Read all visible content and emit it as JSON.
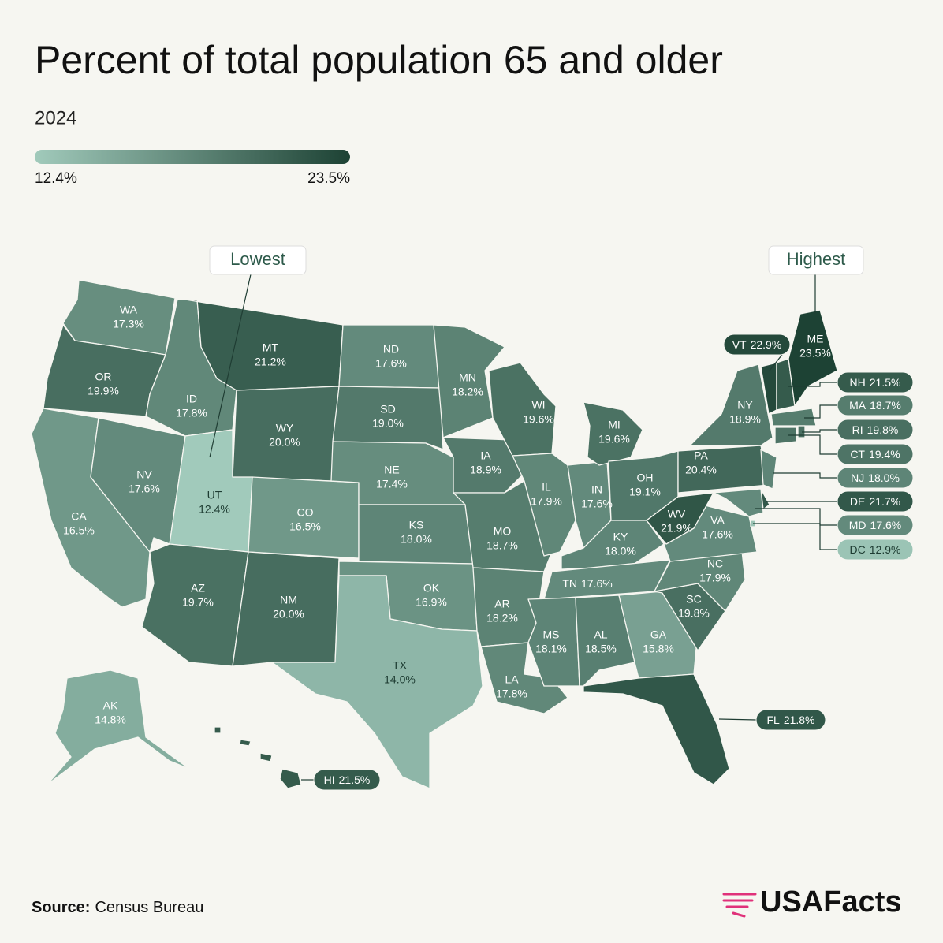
{
  "chart_data": {
    "type": "choropleth",
    "title": "Percent of total population 65 and older",
    "subtitle": "2024",
    "colorbar": {
      "range": [
        12.4,
        23.5
      ],
      "ticks": [
        {
          "value": 12.4,
          "label": "12.4%"
        },
        {
          "value": 23.5,
          "label": "23.5%"
        }
      ],
      "colors": [
        "#a1cabb",
        "#1d4234"
      ]
    },
    "regions": [
      "WA",
      "OR",
      "CA",
      "NV",
      "ID",
      "MT",
      "WY",
      "UT",
      "CO",
      "AZ",
      "NM",
      "ND",
      "SD",
      "NE",
      "KS",
      "OK",
      "TX",
      "MN",
      "IA",
      "MO",
      "AR",
      "LA",
      "WI",
      "IL",
      "IN",
      "MI",
      "OH",
      "KY",
      "TN",
      "MS",
      "AL",
      "GA",
      "FL",
      "SC",
      "NC",
      "VA",
      "WV",
      "PA",
      "NY",
      "NJ",
      "DE",
      "MD",
      "VT",
      "NH",
      "ME",
      "MA",
      "CT",
      "RI",
      "DC",
      "AK",
      "HI"
    ],
    "values": [
      17.3,
      19.9,
      16.5,
      17.6,
      17.8,
      21.2,
      20.0,
      12.4,
      16.5,
      19.7,
      20.0,
      17.6,
      19.0,
      17.4,
      18.0,
      16.9,
      14.0,
      18.2,
      18.9,
      18.7,
      18.2,
      17.8,
      19.6,
      17.9,
      17.6,
      19.6,
      19.1,
      18.0,
      17.6,
      18.1,
      18.5,
      15.8,
      21.8,
      19.8,
      17.9,
      17.6,
      21.9,
      20.4,
      18.9,
      18.0,
      21.7,
      17.6,
      22.9,
      21.5,
      23.5,
      18.7,
      19.4,
      19.8,
      12.9,
      14.8,
      21.5
    ],
    "value_labels": [
      "17.3%",
      "19.9%",
      "16.5%",
      "17.6%",
      "17.8%",
      "21.2%",
      "20.0%",
      "12.4%",
      "16.5%",
      "19.7%",
      "20.0%",
      "17.6%",
      "19.0%",
      "17.4%",
      "18.0%",
      "16.9%",
      "14.0%",
      "18.2%",
      "18.9%",
      "18.7%",
      "18.2%",
      "17.8%",
      "19.6%",
      "17.9%",
      "17.6%",
      "19.6%",
      "19.1%",
      "18.0%",
      "17.6%",
      "18.1%",
      "18.5%",
      "15.8%",
      "21.8%",
      "19.8%",
      "17.9%",
      "17.6%",
      "21.9%",
      "20.4%",
      "18.9%",
      "18.0%",
      "21.7%",
      "17.6%",
      "22.9%",
      "21.5%",
      "23.5%",
      "18.7%",
      "19.4%",
      "19.8%",
      "12.9%",
      "14.8%",
      "21.5%"
    ],
    "annotations": [
      "Lowest",
      "Highest"
    ],
    "source_label": "Source:",
    "source": "Census Bureau",
    "brand": "USAFacts"
  }
}
